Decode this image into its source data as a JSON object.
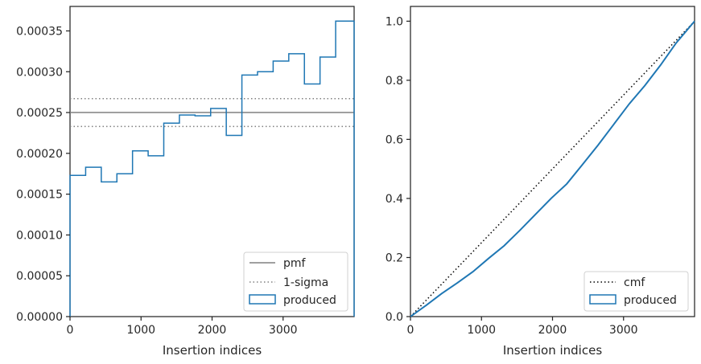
{
  "chart_data": [
    {
      "type": "line",
      "xlabel": "Insertion indices",
      "ylabel": "",
      "xlim": [
        0,
        4000
      ],
      "ylim": [
        0,
        0.00038
      ],
      "xticks": [
        0,
        1000,
        2000,
        3000
      ],
      "xtick_labels": [
        "0",
        "1000",
        "2000",
        "3000"
      ],
      "yticks": [
        0,
        5e-05,
        0.0001,
        0.00015,
        0.0002,
        0.00025,
        0.0003,
        0.00035
      ],
      "ytick_labels": [
        "0.00000",
        "0.00005",
        "0.00010",
        "0.00015",
        "0.00020",
        "0.00025",
        "0.00030",
        "0.00035"
      ],
      "grid": false,
      "legend_position": "lower-right",
      "colors": {
        "pmf": "#808080",
        "sigma": "#808080",
        "produced": "#1f77b4"
      },
      "series": [
        {
          "name": "pmf",
          "style": "solid",
          "kind": "hline",
          "value": 0.00025
        },
        {
          "name": "1-sigma",
          "style": "dotted",
          "kind": "hlines",
          "values": [
            0.000233,
            0.000267
          ]
        },
        {
          "name": "produced",
          "kind": "step-histogram",
          "bin_edges": [
            0,
            220,
            440,
            660,
            880,
            1100,
            1320,
            1540,
            1760,
            1980,
            2200,
            2420,
            2640,
            2860,
            3080,
            3300,
            3520,
            3740,
            4000
          ],
          "values": [
            0.000173,
            0.000183,
            0.000165,
            0.000175,
            0.000203,
            0.000197,
            0.000237,
            0.000247,
            0.000246,
            0.000255,
            0.000222,
            0.000296,
            0.0003,
            0.000313,
            0.000322,
            0.000285,
            0.000318,
            0.000362
          ]
        }
      ]
    },
    {
      "type": "line",
      "xlabel": "Insertion indices",
      "ylabel": "",
      "xlim": [
        0,
        4000
      ],
      "ylim": [
        0,
        1.05
      ],
      "xticks": [
        0,
        1000,
        2000,
        3000
      ],
      "xtick_labels": [
        "0",
        "1000",
        "2000",
        "3000"
      ],
      "yticks": [
        0,
        0.2,
        0.4,
        0.6,
        0.8,
        1.0
      ],
      "ytick_labels": [
        "0.0",
        "0.2",
        "0.4",
        "0.6",
        "0.8",
        "1.0"
      ],
      "grid": false,
      "legend_position": "lower-right",
      "colors": {
        "cmf": "#000000",
        "produced": "#1f77b4"
      },
      "series": [
        {
          "name": "cmf",
          "style": "dotted",
          "x": [
            0,
            4000
          ],
          "y": [
            0,
            1.0
          ]
        },
        {
          "name": "produced",
          "x": [
            0,
            220,
            440,
            660,
            880,
            1100,
            1320,
            1540,
            1760,
            1980,
            2200,
            2420,
            2640,
            2860,
            3080,
            3300,
            3520,
            3740,
            4000
          ],
          "y": [
            0,
            0.038,
            0.078,
            0.114,
            0.152,
            0.197,
            0.24,
            0.292,
            0.346,
            0.4,
            0.449,
            0.514,
            0.58,
            0.65,
            0.72,
            0.782,
            0.851,
            0.926,
            1.0
          ]
        }
      ]
    }
  ]
}
